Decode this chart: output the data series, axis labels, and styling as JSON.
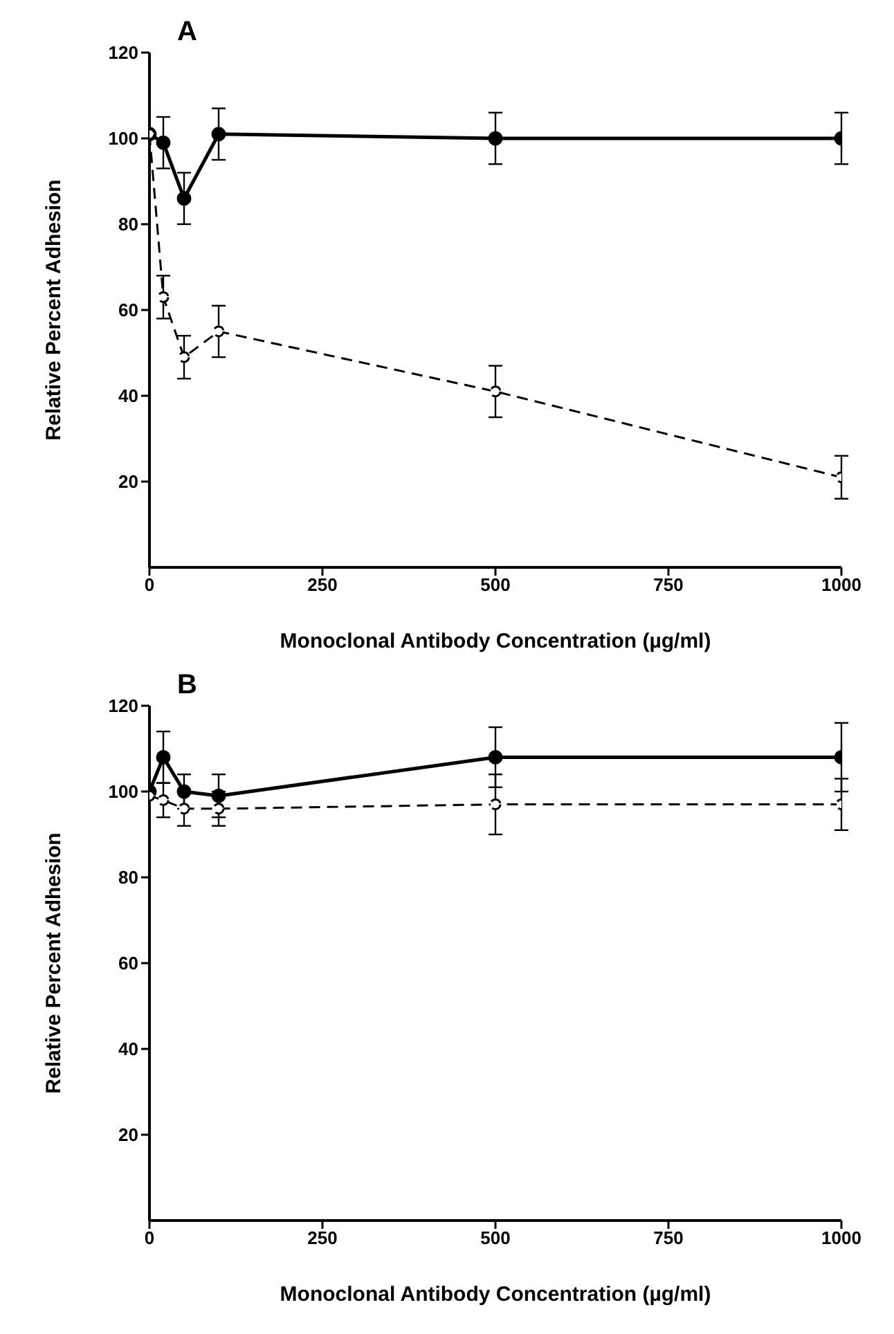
{
  "chart_data": [
    {
      "type": "line",
      "title": "A",
      "xlabel": "Monoclonal Antibody Concentration (µg/ml)",
      "ylabel": "Relative Percent Adhesion",
      "x": [
        0,
        20,
        50,
        100,
        500,
        1000
      ],
      "xlim": [
        0,
        1000
      ],
      "xticks": [
        0,
        250,
        500,
        750,
        1000
      ],
      "ylim": [
        0,
        120
      ],
      "yticks": [
        20,
        40,
        60,
        80,
        100,
        120
      ],
      "marker": "circle",
      "grid": false,
      "legend": false,
      "series": [
        {
          "color": "#000000",
          "line_style": "solid",
          "values": [
            101,
            99,
            86,
            101,
            100,
            100
          ],
          "errors": [
            null,
            6,
            6,
            6,
            6,
            6
          ]
        },
        {
          "color": "#000000",
          "line_style": "dashed",
          "values": [
            101,
            63,
            49,
            55,
            41,
            21
          ],
          "errors": [
            null,
            5,
            5,
            6,
            6,
            5
          ]
        }
      ]
    },
    {
      "type": "line",
      "title": "B",
      "xlabel": "Monoclonal Antibody Concentration (µg/ml)",
      "ylabel": "Relative Percent Adhesion",
      "x": [
        0,
        20,
        50,
        100,
        500,
        1000
      ],
      "xlim": [
        0,
        1000
      ],
      "xticks": [
        0,
        250,
        500,
        750,
        1000
      ],
      "ylim": [
        0,
        120
      ],
      "yticks": [
        20,
        40,
        60,
        80,
        100,
        120
      ],
      "marker": "circle",
      "grid": false,
      "legend": false,
      "series": [
        {
          "color": "#000000",
          "line_style": "solid",
          "values": [
            100,
            108,
            100,
            99,
            108,
            108
          ],
          "errors": [
            null,
            6,
            4,
            5,
            7,
            8
          ]
        },
        {
          "color": "#000000",
          "line_style": "dashed",
          "values": [
            99,
            98,
            96,
            96,
            97,
            97
          ],
          "errors": [
            null,
            4,
            4,
            4,
            7,
            6
          ]
        }
      ]
    }
  ]
}
